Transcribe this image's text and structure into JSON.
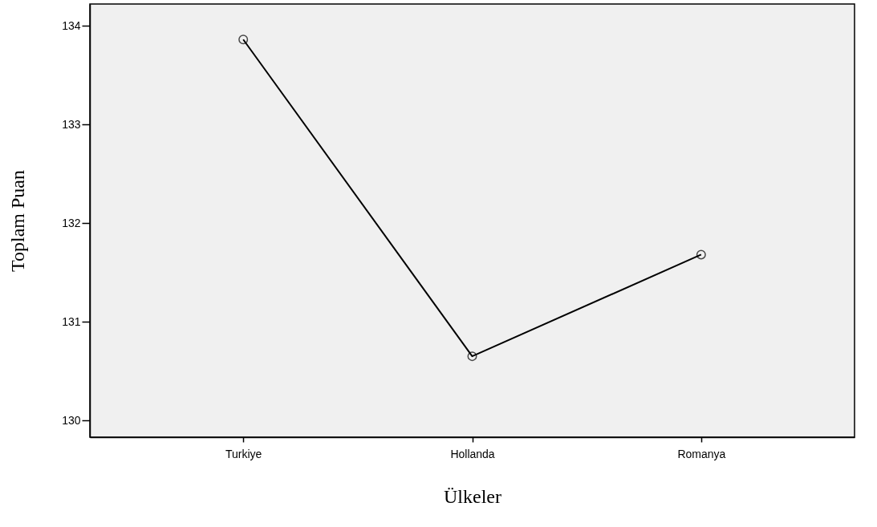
{
  "chart_data": {
    "type": "line",
    "xlabel": "Ülkeler",
    "ylabel": "Toplam Puan",
    "categories": [
      "Turkiye",
      "Hollanda",
      "Romanya"
    ],
    "series": [
      {
        "color": "#000000",
        "values": [
          133.86,
          130.65,
          131.68
        ]
      }
    ],
    "ylim": [
      129.83,
      134.22
    ],
    "yticks": [
      130,
      131,
      132,
      133,
      134
    ],
    "grid": false,
    "legend": false,
    "marker": "circle",
    "line_style": "solid"
  }
}
